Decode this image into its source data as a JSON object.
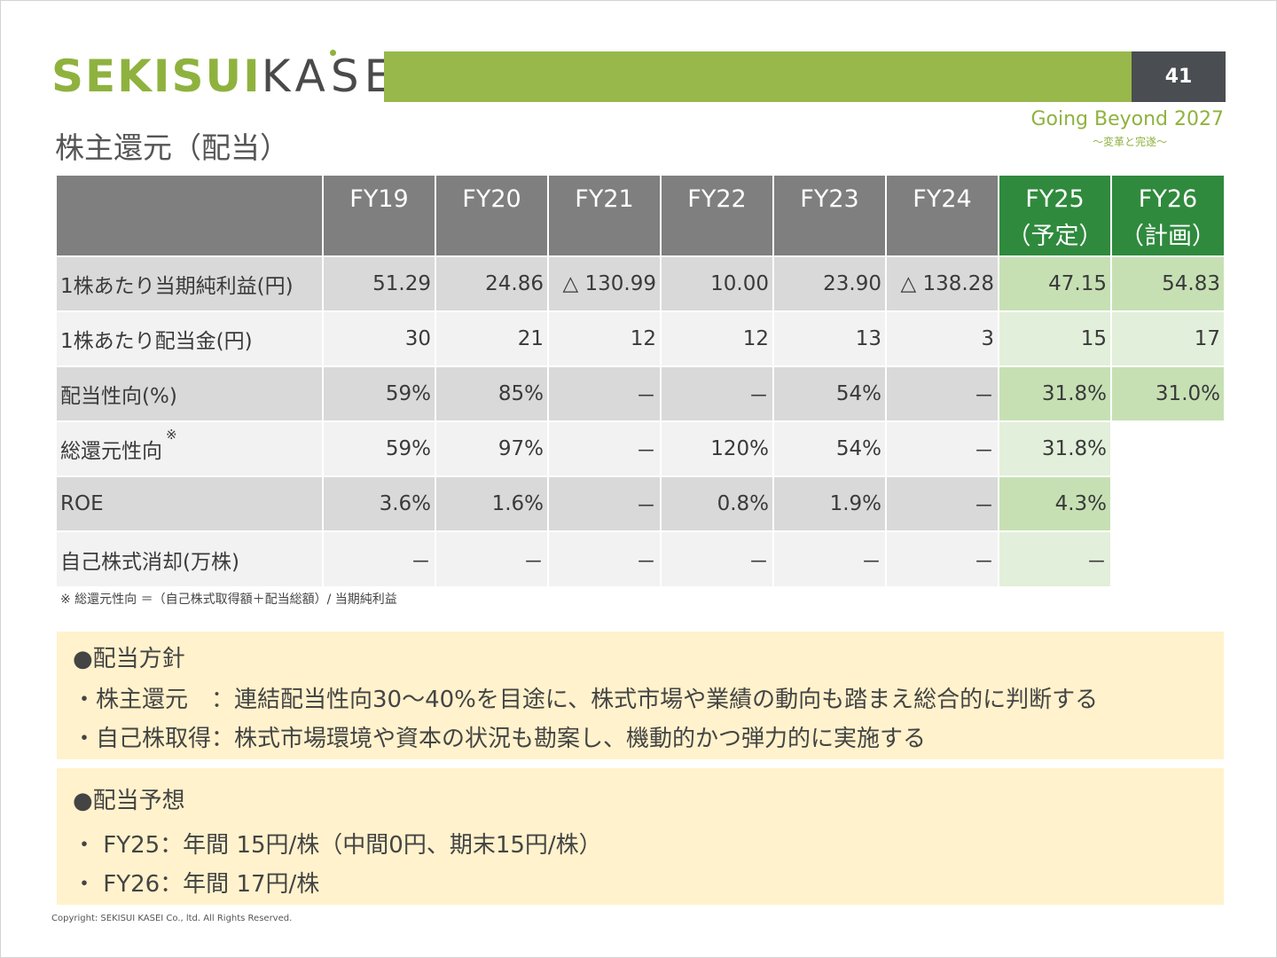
{
  "logo": {
    "part1": "SEKISUI",
    "part2": "KASEI"
  },
  "page_number": "41",
  "tagline": "Going Beyond 2027",
  "tagline_sub": "～変革と完遂～",
  "title": "株主還元（配当）",
  "table": {
    "headers": [
      {
        "line1": "FY19",
        "line2": ""
      },
      {
        "line1": "FY20",
        "line2": ""
      },
      {
        "line1": "FY21",
        "line2": ""
      },
      {
        "line1": "FY22",
        "line2": ""
      },
      {
        "line1": "FY23",
        "line2": ""
      },
      {
        "line1": "FY24",
        "line2": ""
      },
      {
        "line1": "FY25",
        "line2": "（予定）"
      },
      {
        "line1": "FY26",
        "line2": "（計画）"
      }
    ],
    "rows": [
      {
        "label": "1株あたり当期純利益(円)",
        "note": "",
        "cells": [
          "51.29",
          "24.86",
          "△ 130.99",
          "10.00",
          "23.90",
          "△ 138.28",
          "47.15",
          "54.83"
        ]
      },
      {
        "label": "1株あたり配当金(円)",
        "note": "",
        "cells": [
          "30",
          "21",
          "12",
          "12",
          "13",
          "3",
          "15",
          "17"
        ]
      },
      {
        "label": "配当性向(%)",
        "note": "",
        "cells": [
          "59%",
          "85%",
          "－",
          "－",
          "54%",
          "－",
          "31.8%",
          "31.0%"
        ]
      },
      {
        "label": "総還元性向",
        "note": "※",
        "cells": [
          "59%",
          "97%",
          "－",
          "120%",
          "54%",
          "－",
          "31.8%",
          ""
        ]
      },
      {
        "label": "ROE",
        "note": "",
        "cells": [
          "3.6%",
          "1.6%",
          "－",
          "0.8%",
          "1.9%",
          "－",
          "4.3%",
          ""
        ]
      },
      {
        "label": "自己株式消却(万株)",
        "note": "",
        "cells": [
          "－",
          "－",
          "－",
          "－",
          "－",
          "－",
          "－",
          ""
        ]
      }
    ]
  },
  "footnote": "※ 総還元性向 ＝（自己株式取得額＋配当総額）/ 当期純利益",
  "policy": {
    "heading": "●配当方針",
    "lines": [
      "・株主還元　：連結配当性向30～40%を目途に、株式市場や業績の動向も踏まえ総合的に判断する",
      "・自己株取得：株式市場環境や資本の状況も勘案し、機動的かつ弾力的に実施する"
    ]
  },
  "forecast": {
    "heading": "●配当予想",
    "lines": [
      "・ FY25：年間 15円/株（中間0円、期末15円/株）",
      "・ FY26：年間 17円/株"
    ]
  },
  "copyright": "Copyright: SEKISUI KASEI Co., ltd. All Rights Reserved.",
  "colors": {
    "brand_green": "#8fb23f",
    "header_bar_green": "#98b84b",
    "header_gray": "#7f7f7f",
    "forecast_header_green": "#2f8a3d",
    "forecast_cell_green_dark": "#c6e0b4",
    "forecast_cell_green_light": "#e2efda",
    "note_box_yellow": "#fff2cc"
  }
}
